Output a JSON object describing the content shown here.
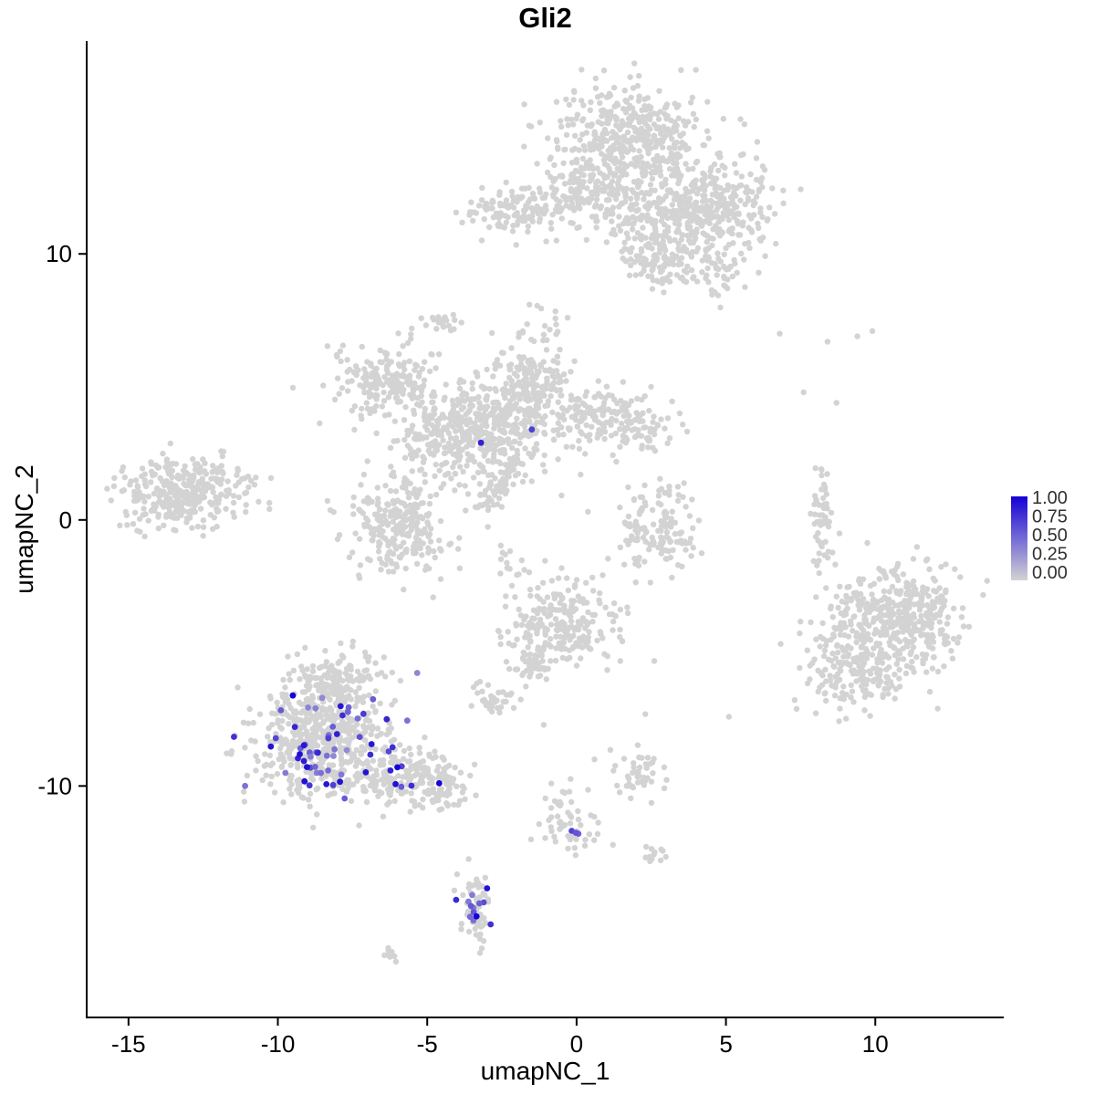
{
  "chart_data": {
    "type": "scatter",
    "title": "Gli2",
    "xlabel": "umapNC_1",
    "ylabel": "umapNC_2",
    "xlim": [
      -16.4,
      14.3
    ],
    "ylim": [
      -18.7,
      18.0
    ],
    "x_ticks": [
      -15,
      -10,
      -5,
      0,
      5,
      10
    ],
    "y_ticks": [
      -10,
      0,
      10
    ],
    "grid": false,
    "point_color_low": "#d3d3d3",
    "point_color_high": "#1500d6",
    "legend": {
      "position": "right",
      "labels": [
        "1.00",
        "0.75",
        "0.50",
        "0.25",
        "0.00"
      ]
    },
    "background_clusters": [
      {
        "cx": 1.8,
        "cy": 14.3,
        "sx": 1.25,
        "sy": 1.05,
        "n": 480
      },
      {
        "cx": 3.1,
        "cy": 11.4,
        "sx": 1.15,
        "sy": 0.85,
        "n": 300
      },
      {
        "cx": 5.1,
        "cy": 11.9,
        "sx": 0.85,
        "sy": 0.8,
        "n": 170
      },
      {
        "cx": -1.8,
        "cy": 11.6,
        "sx": 1.0,
        "sy": 0.45,
        "n": 130
      },
      {
        "cx": 0.2,
        "cy": 12.3,
        "sx": 0.8,
        "sy": 0.6,
        "n": 110
      },
      {
        "cx": 2.8,
        "cy": 9.7,
        "sx": 0.6,
        "sy": 0.55,
        "n": 70
      },
      {
        "cx": 4.5,
        "cy": 9.3,
        "sx": 0.7,
        "sy": 0.45,
        "n": 55
      },
      {
        "cx": -4.6,
        "cy": 7.4,
        "sx": 0.4,
        "sy": 0.2,
        "n": 22
      },
      {
        "cx": -1.3,
        "cy": 6.8,
        "sx": 0.5,
        "sy": 0.7,
        "n": 28
      },
      {
        "cx": -3.5,
        "cy": 3.2,
        "sx": 1.25,
        "sy": 0.9,
        "n": 480
      },
      {
        "cx": -6.3,
        "cy": 5.2,
        "sx": 0.9,
        "sy": 0.65,
        "n": 190
      },
      {
        "cx": -1.6,
        "cy": 5.0,
        "sx": 0.75,
        "sy": 0.75,
        "n": 180
      },
      {
        "cx": 0.7,
        "cy": 3.9,
        "sx": 0.9,
        "sy": 0.55,
        "n": 140
      },
      {
        "cx": 2.3,
        "cy": 3.4,
        "sx": 0.5,
        "sy": 0.45,
        "n": 55
      },
      {
        "cx": -5.9,
        "cy": -0.3,
        "sx": 0.8,
        "sy": 0.85,
        "n": 240
      },
      {
        "cx": -2.6,
        "cy": 1.3,
        "sx": 0.3,
        "sy": 0.7,
        "n": 70,
        "rot": -35
      },
      {
        "cx": -13.2,
        "cy": 1.0,
        "sx": 1.05,
        "sy": 0.65,
        "n": 330
      },
      {
        "cx": 2.7,
        "cy": -0.4,
        "sx": 0.65,
        "sy": 0.85,
        "n": 140
      },
      {
        "cx": 8.2,
        "cy": 0.1,
        "sx": 0.18,
        "sy": 0.95,
        "n": 55
      },
      {
        "cx": 10.7,
        "cy": -3.7,
        "sx": 1.15,
        "sy": 1.0,
        "n": 430
      },
      {
        "cx": 9.4,
        "cy": -5.7,
        "sx": 0.85,
        "sy": 0.75,
        "n": 170
      },
      {
        "cx": -8.6,
        "cy": -8.3,
        "sx": 1.15,
        "sy": 1.05,
        "n": 560
      },
      {
        "cx": -8.1,
        "cy": -6.1,
        "sx": 0.75,
        "sy": 0.6,
        "n": 140
      },
      {
        "cx": -5.7,
        "cy": -9.7,
        "sx": 0.8,
        "sy": 0.5,
        "n": 160
      },
      {
        "cx": -4.4,
        "cy": -10.2,
        "sx": 0.4,
        "sy": 0.35,
        "n": 50
      },
      {
        "cx": -2.2,
        "cy": -1.6,
        "sx": 0.4,
        "sy": 0.6,
        "n": 18
      },
      {
        "cx": -0.5,
        "cy": -3.9,
        "sx": 0.9,
        "sy": 0.8,
        "n": 230
      },
      {
        "cx": -1.5,
        "cy": -5.4,
        "sx": 0.4,
        "sy": 0.4,
        "n": 45
      },
      {
        "cx": -2.7,
        "cy": -6.7,
        "sx": 0.35,
        "sy": 0.3,
        "n": 35
      },
      {
        "cx": 2.1,
        "cy": -9.6,
        "sx": 0.5,
        "sy": 0.4,
        "n": 45
      },
      {
        "cx": 2.6,
        "cy": -12.6,
        "sx": 0.25,
        "sy": 0.2,
        "n": 12
      },
      {
        "cx": -0.3,
        "cy": -11.4,
        "sx": 0.45,
        "sy": 0.7,
        "n": 55
      },
      {
        "cx": -3.4,
        "cy": -14.7,
        "sx": 0.28,
        "sy": 0.65,
        "n": 55
      },
      {
        "cx": -6.3,
        "cy": -16.4,
        "sx": 0.25,
        "sy": 0.15,
        "n": 8
      }
    ],
    "background_singles": [
      [
        6.8,
        7.0
      ],
      [
        8.4,
        6.7
      ],
      [
        9.4,
        6.9
      ],
      [
        9.9,
        7.1
      ],
      [
        7.6,
        4.8
      ],
      [
        8.7,
        4.4
      ],
      [
        2.6,
        -5.3
      ],
      [
        5.1,
        -7.4
      ],
      [
        2.3,
        -7.3
      ],
      [
        -1.1,
        -7.7
      ],
      [
        0.6,
        -9.0
      ]
    ],
    "expressed_clusters": [
      {
        "cx": -8.5,
        "cy": -8.3,
        "sx": 1.05,
        "sy": 1.0,
        "n": 55,
        "tmin": 0.35,
        "tmax": 1.0
      },
      {
        "cx": -5.8,
        "cy": -9.8,
        "sx": 0.7,
        "sy": 0.4,
        "n": 7,
        "tmin": 0.5,
        "tmax": 1.0
      },
      {
        "cx": -3.4,
        "cy": -14.7,
        "sx": 0.22,
        "sy": 0.45,
        "n": 12,
        "tmin": 0.4,
        "tmax": 1.0
      },
      {
        "cx": -0.2,
        "cy": -11.8,
        "sx": 0.2,
        "sy": 0.15,
        "n": 3,
        "tmin": 0.5,
        "tmax": 0.8
      }
    ],
    "expressed_singles": [
      {
        "x": -3.2,
        "y": 2.9,
        "t": 0.85
      },
      {
        "x": -1.5,
        "y": 3.4,
        "t": 0.7
      },
      {
        "x": -9.5,
        "y": -6.6,
        "t": 1.0
      },
      {
        "x": -6.0,
        "y": -9.3,
        "t": 1.0
      },
      {
        "x": -4.6,
        "y": -9.9,
        "t": 1.0
      },
      {
        "x": -7.9,
        "y": -7.0,
        "t": 0.9
      },
      {
        "x": -3.35,
        "y": -14.9,
        "t": 1.0
      }
    ]
  }
}
